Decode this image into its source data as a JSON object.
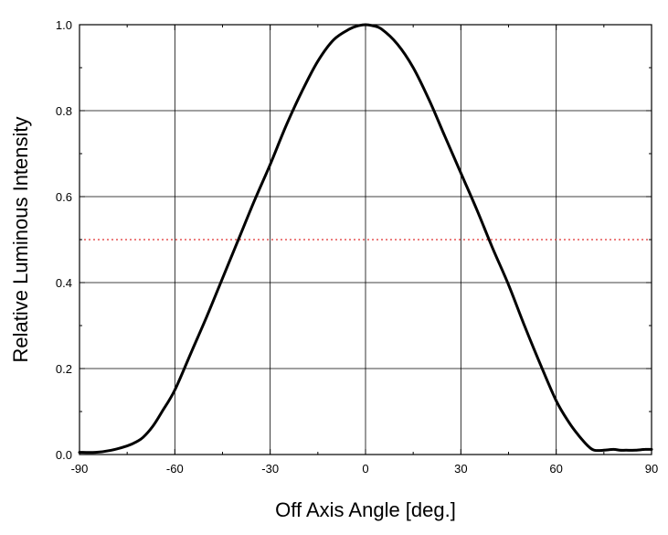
{
  "chart_data": {
    "type": "line",
    "title": "",
    "xlabel": "Off Axis Angle [deg.]",
    "ylabel": "Relative Luminous Intensity",
    "xlim": [
      -90,
      90
    ],
    "ylim": [
      0.0,
      1.0
    ],
    "x_ticks": [
      -90,
      -60,
      -30,
      0,
      30,
      60,
      90
    ],
    "x_tick_labels": [
      "-90",
      "-60",
      "-30",
      "0",
      "30",
      "60",
      "90"
    ],
    "y_ticks": [
      0.0,
      0.2,
      0.4,
      0.6,
      0.8,
      1.0
    ],
    "y_tick_labels": [
      "0.0",
      "0.2",
      "0.4",
      "0.6",
      "0.8",
      "1.0"
    ],
    "grid": true,
    "series": [
      {
        "color": "#000000",
        "x": [
          -90,
          -85,
          -80,
          -75,
          -72,
          -70,
          -67,
          -64,
          -60,
          -55,
          -50,
          -45,
          -40,
          -35,
          -30,
          -25,
          -20,
          -15,
          -10,
          -5,
          -2,
          0,
          2,
          5,
          10,
          15,
          20,
          25,
          30,
          35,
          40,
          45,
          50,
          55,
          60,
          64,
          67,
          70,
          72,
          75,
          78,
          80,
          82,
          85,
          88,
          90
        ],
        "y": [
          0.005,
          0.005,
          0.01,
          0.02,
          0.03,
          0.04,
          0.065,
          0.1,
          0.15,
          0.235,
          0.32,
          0.41,
          0.5,
          0.59,
          0.675,
          0.765,
          0.845,
          0.915,
          0.965,
          0.99,
          0.998,
          1.0,
          0.998,
          0.99,
          0.955,
          0.9,
          0.825,
          0.74,
          0.655,
          0.57,
          0.48,
          0.395,
          0.3,
          0.21,
          0.125,
          0.075,
          0.045,
          0.02,
          0.01,
          0.01,
          0.012,
          0.01,
          0.01,
          0.01,
          0.012,
          0.012
        ]
      }
    ],
    "reference_line": {
      "y": 0.5,
      "color": "#e03030",
      "style": "dotted"
    },
    "legend": "none"
  }
}
